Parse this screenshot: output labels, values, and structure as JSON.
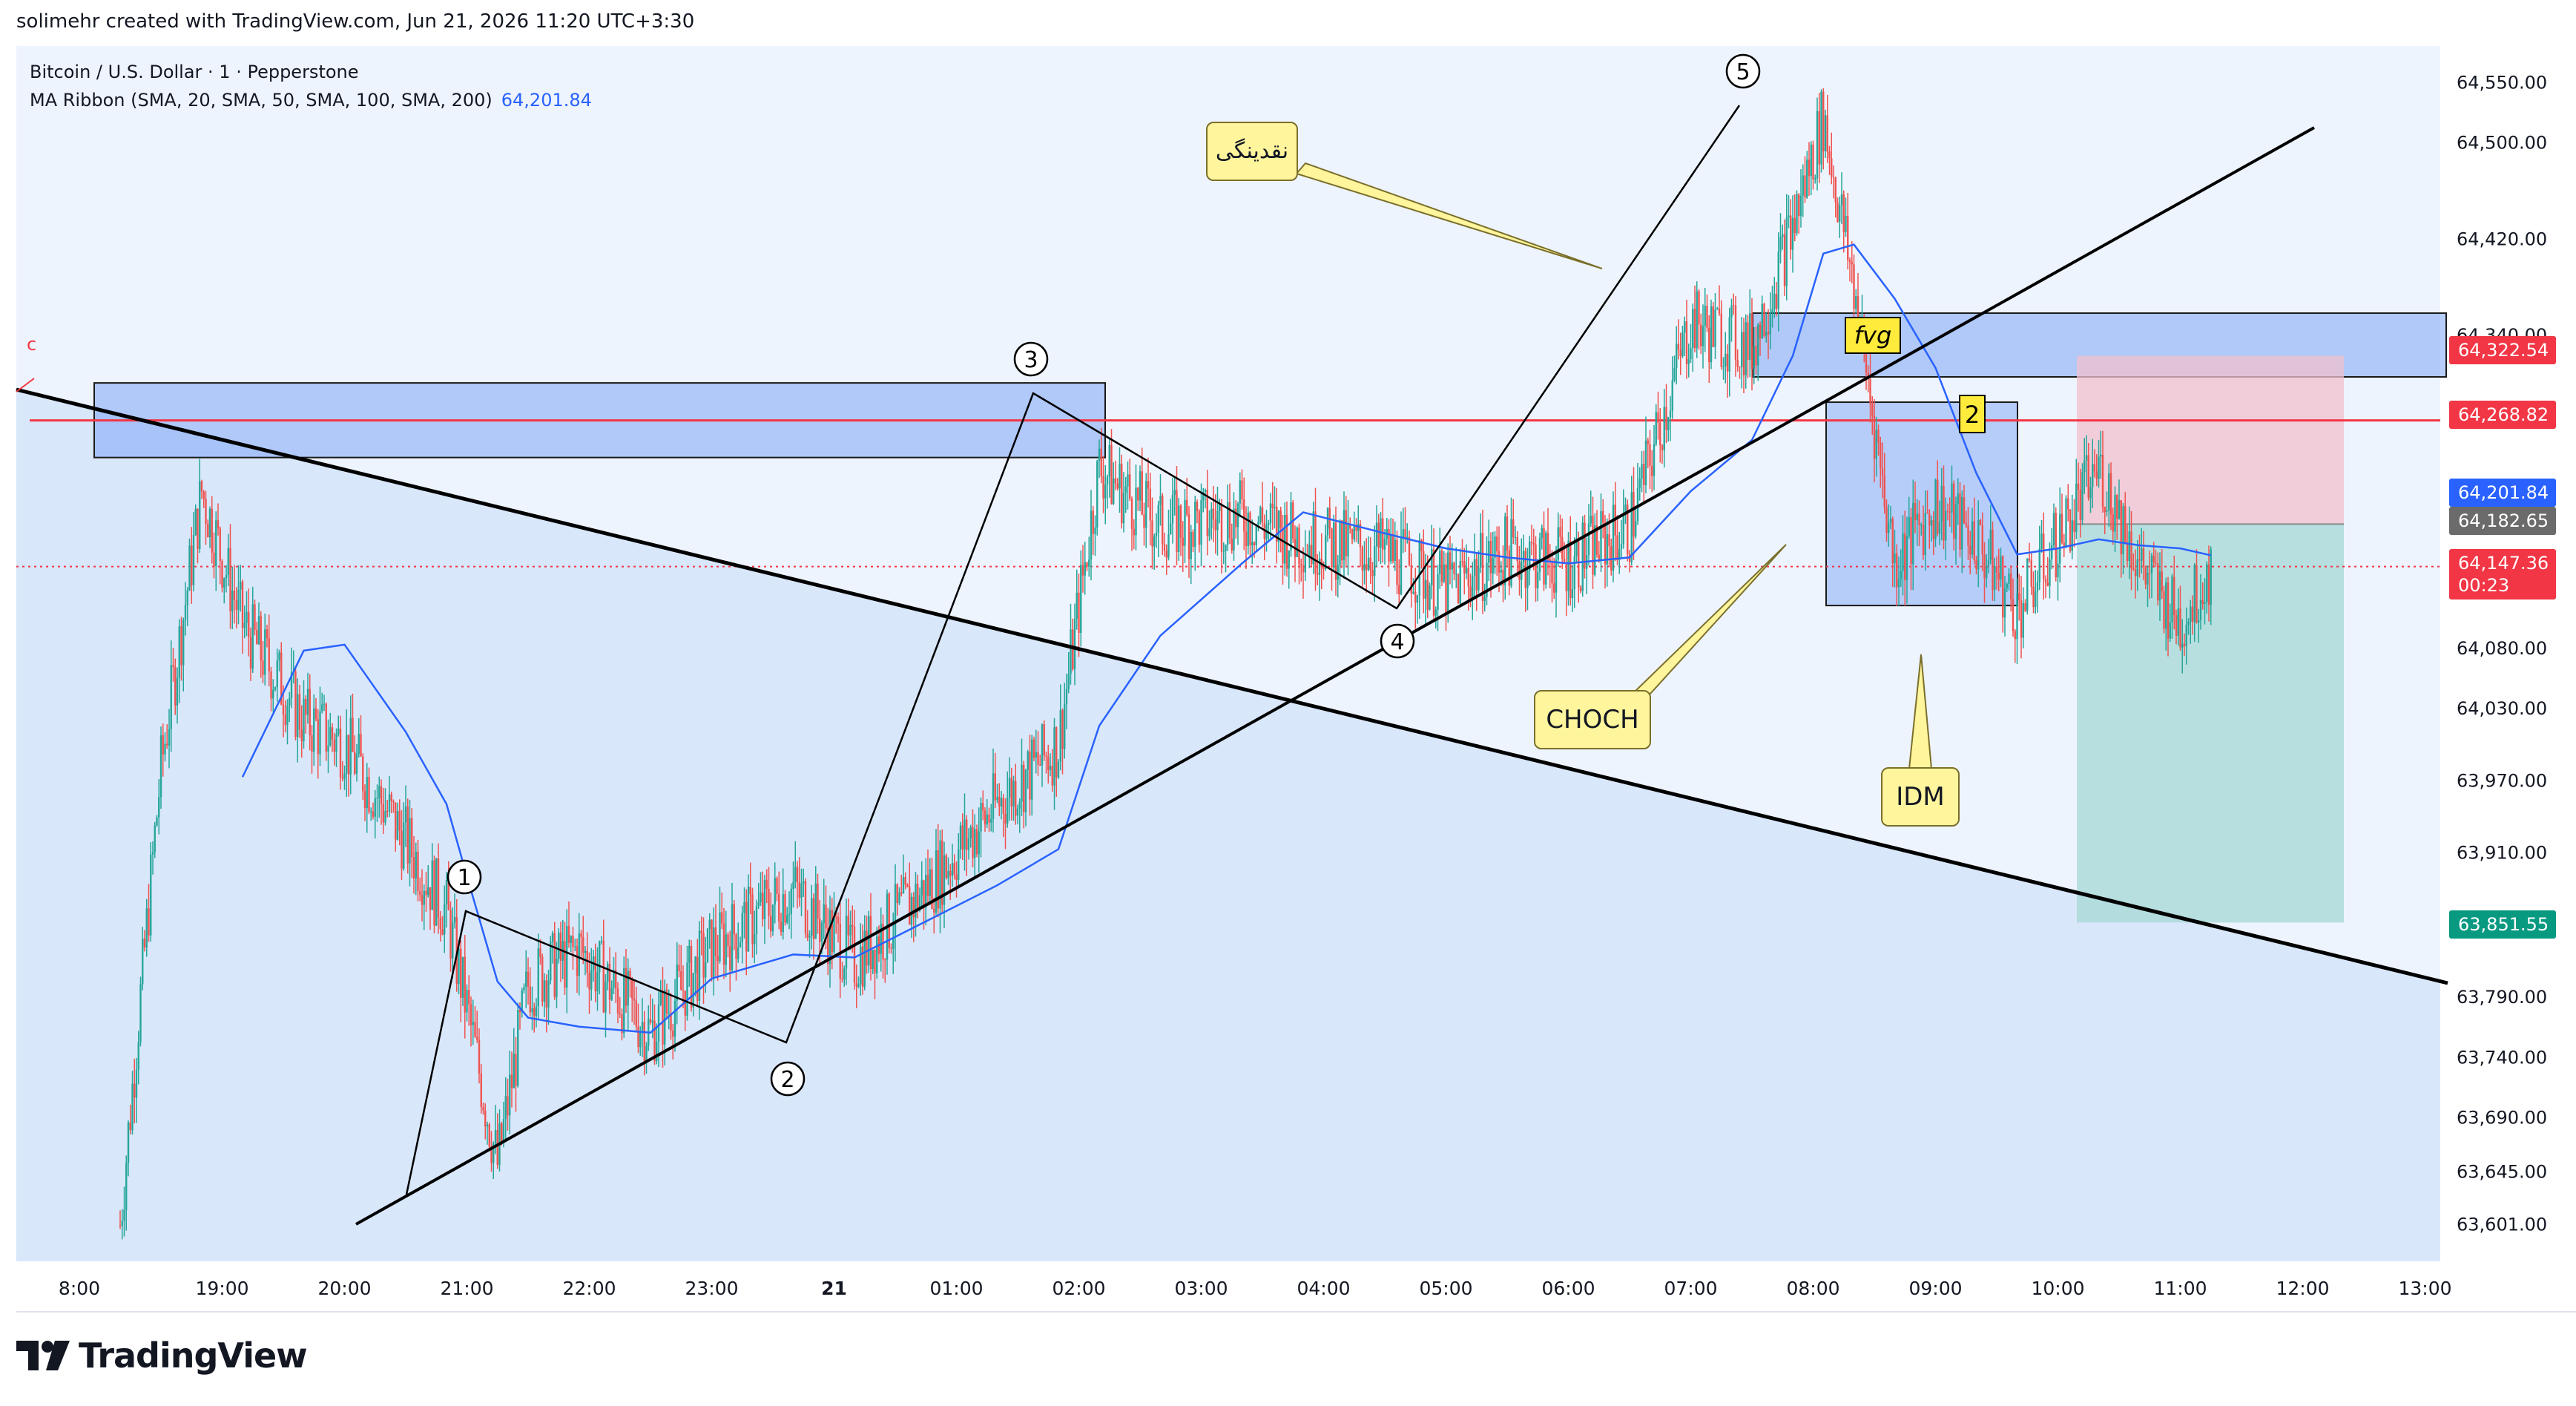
{
  "header": {
    "caption": "solimehr created with TradingView.com, Jun 21, 2026 11:20 UTC+3:30"
  },
  "legend": {
    "symbol": "Bitcoin / U.S. Dollar · 1 · Pepperstone",
    "indicator": "MA Ribbon (SMA, 20, SMA, 50, SMA, 100, SMA, 200)",
    "indicator_value": "64,201.84"
  },
  "brand": {
    "name": "TradingView"
  },
  "colors": {
    "up": "#26a69a",
    "down": "#ef5350",
    "ma": "#2962ff",
    "resistance": "#f23645",
    "zone": "#7ea6f5",
    "target_zone": "#a6d8d6",
    "stop_zone": "#f0c0cc"
  },
  "annotations": {
    "wave_1": "1",
    "wave_2": "2",
    "wave_3": "3",
    "wave_4": "4",
    "wave_5": "5",
    "liquidity": "نقدینگی",
    "choch": "CHOCH",
    "idm": "IDM",
    "fvg": "fvg",
    "box_two": "2",
    "marker_c": "c"
  },
  "price_tags": {
    "fvg_top": "64,322.54",
    "resistance": "64,268.82",
    "ma_value": "64,201.84",
    "entry": "64,182.65",
    "last_price": "64,147.36",
    "countdown": "00:23",
    "target": "63,851.55"
  },
  "chart_data": {
    "type": "candlestick",
    "title": "Bitcoin / U.S. Dollar · 1 · Pepperstone",
    "y_axis": {
      "range": [
        63570,
        64580
      ],
      "ticks": [
        "64,550.00",
        "64,500.00",
        "64,420.00",
        "64,340.00",
        "64,080.00",
        "64,030.00",
        "63,970.00",
        "63,910.00",
        "63,790.00",
        "63,740.00",
        "63,690.00",
        "63,645.00",
        "63,601.00"
      ]
    },
    "x_axis": {
      "ticks": [
        "8:00",
        "19:00",
        "20:00",
        "21:00",
        "22:00",
        "23:00",
        "21",
        "01:00",
        "02:00",
        "03:00",
        "04:00",
        "05:00",
        "06:00",
        "07:00",
        "08:00",
        "09:00",
        "10:00",
        "11:00",
        "12:00",
        "13:00"
      ]
    },
    "price_path": [
      {
        "t": "18:10",
        "p": 63600
      },
      {
        "t": "18:30",
        "p": 63980
      },
      {
        "t": "18:50",
        "p": 64210
      },
      {
        "t": "19:10",
        "p": 64100
      },
      {
        "t": "19:40",
        "p": 64020
      },
      {
        "t": "20:00",
        "p": 64000
      },
      {
        "t": "20:30",
        "p": 63920
      },
      {
        "t": "20:50",
        "p": 63860
      },
      {
        "t": "21:00",
        "p": 63780
      },
      {
        "t": "21:15",
        "p": 63650
      },
      {
        "t": "21:30",
        "p": 63800
      },
      {
        "t": "21:55",
        "p": 63830
      },
      {
        "t": "22:30",
        "p": 63760
      },
      {
        "t": "23:00",
        "p": 63830
      },
      {
        "t": "23:40",
        "p": 63880
      },
      {
        "t": "00:10",
        "p": 63820
      },
      {
        "t": "00:45",
        "p": 63880
      },
      {
        "t": "01:20",
        "p": 63950
      },
      {
        "t": "01:50",
        "p": 64000
      },
      {
        "t": "02:10",
        "p": 64230
      },
      {
        "t": "02:40",
        "p": 64180
      },
      {
        "t": "03:20",
        "p": 64190
      },
      {
        "t": "03:50",
        "p": 64170
      },
      {
        "t": "04:30",
        "p": 64160
      },
      {
        "t": "05:00",
        "p": 64130
      },
      {
        "t": "05:30",
        "p": 64160
      },
      {
        "t": "06:00",
        "p": 64150
      },
      {
        "t": "06:30",
        "p": 64180
      },
      {
        "t": "07:00",
        "p": 64350
      },
      {
        "t": "07:30",
        "p": 64330
      },
      {
        "t": "07:50",
        "p": 64430
      },
      {
        "t": "08:05",
        "p": 64520
      },
      {
        "t": "08:20",
        "p": 64380
      },
      {
        "t": "08:40",
        "p": 64150
      },
      {
        "t": "09:00",
        "p": 64200
      },
      {
        "t": "09:20",
        "p": 64170
      },
      {
        "t": "09:40",
        "p": 64110
      },
      {
        "t": "10:00",
        "p": 64170
      },
      {
        "t": "10:20",
        "p": 64230
      },
      {
        "t": "10:40",
        "p": 64150
      },
      {
        "t": "11:00",
        "p": 64100
      },
      {
        "t": "11:15",
        "p": 64147
      }
    ],
    "series": [
      {
        "name": "MA Ribbon (SMA, 20, SMA, 50, SMA, 100, SMA, 200)",
        "last_value": 64201.84
      }
    ],
    "levels": {
      "resistance": 64268.82,
      "fvg_top": 64322.54,
      "entry": 64182.65,
      "last": 64147.36,
      "target": 63851.55
    }
  }
}
